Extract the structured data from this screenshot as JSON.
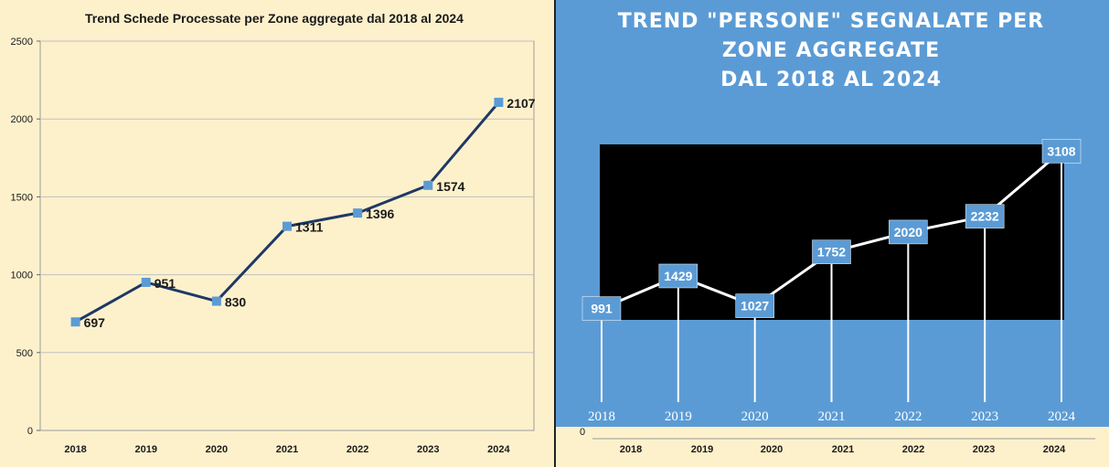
{
  "chart_data": [
    {
      "type": "line",
      "title": "Trend Schede Processate per Zone aggregate dal 2018 al 2024",
      "xlabel": "",
      "ylabel": "",
      "categories": [
        "2018",
        "2019",
        "2020",
        "2021",
        "2022",
        "2023",
        "2024"
      ],
      "values": [
        697,
        951,
        830,
        1311,
        1396,
        1574,
        2107
      ],
      "ylim": [
        0,
        2500
      ],
      "yticks": [
        "0",
        "500",
        "1000",
        "1500",
        "2000",
        "2500"
      ],
      "grid": true,
      "legend": "none",
      "colors": {
        "line": "#1f3864",
        "marker": "#5b9bd5",
        "background": "#fdf1cc",
        "grid": "#bfbfbf"
      }
    },
    {
      "type": "line",
      "title_lines": [
        "TREND \"PERSONE\" SEGNALATE PER",
        "ZONE AGGREGATE",
        "DAL 2018 AL 2024"
      ],
      "xlabel": "",
      "ylabel": "",
      "categories": [
        "2018",
        "2019",
        "2020",
        "2021",
        "2022",
        "2023",
        "2024"
      ],
      "values": [
        991,
        1429,
        1027,
        1752,
        2020,
        2232,
        3108
      ],
      "y_axis_label": "0",
      "legend": "none",
      "colors": {
        "panel": "#5b9bd5",
        "plot": "#000000",
        "line": "#ffffff",
        "label_box": "#5b9bd5",
        "outer": "#fdf1cc"
      }
    }
  ]
}
